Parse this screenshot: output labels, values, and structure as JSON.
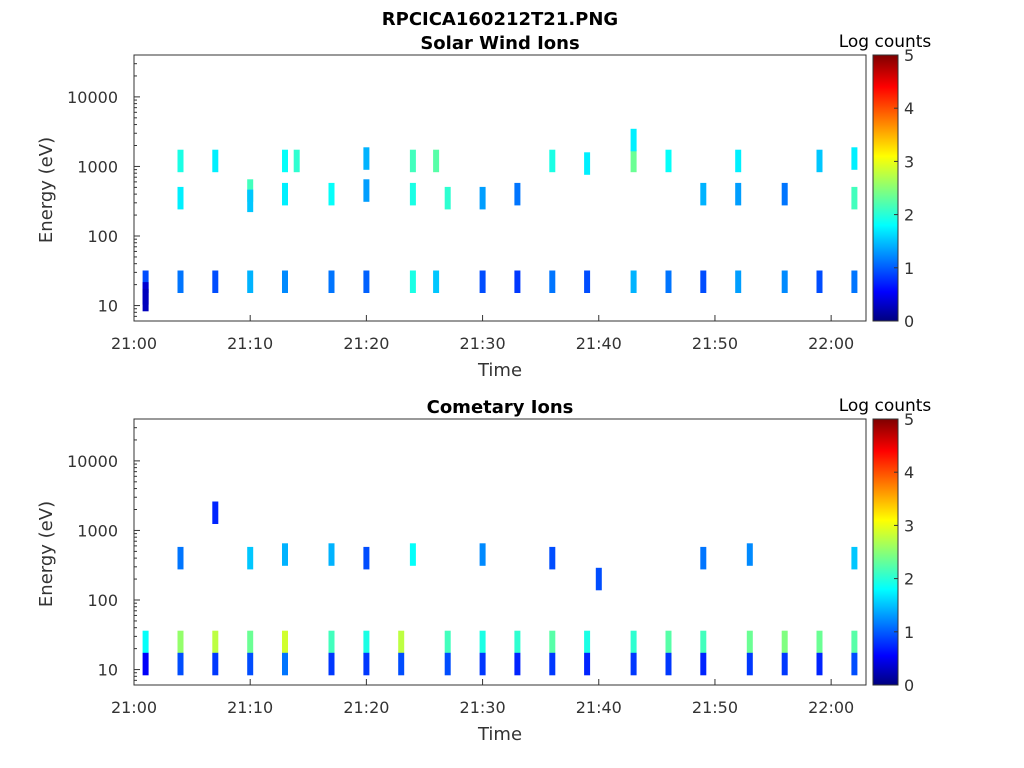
{
  "figure": {
    "title": "RPCICA160212T21.PNG"
  },
  "chart_data": [
    {
      "type": "heatmap",
      "title": "Solar Wind Ions",
      "xlabel": "Time",
      "ylabel": "Energy (eV)",
      "yscale": "log",
      "xlim": [
        "21:00",
        "22:03"
      ],
      "ylim": [
        6,
        40000
      ],
      "xticks": [
        "21:00",
        "21:10",
        "21:20",
        "21:30",
        "21:40",
        "21:50",
        "22:00"
      ],
      "yticks": [
        "10",
        "100",
        "1000",
        "10000"
      ],
      "colorbar": {
        "label": "Log counts",
        "range": [
          0,
          5
        ],
        "ticks": [
          "0",
          "1",
          "2",
          "3",
          "4",
          "5"
        ],
        "colormap": "jet"
      },
      "cells": [
        [
          "21:01",
          22,
          1.0
        ],
        [
          "21:01",
          15,
          0.4
        ],
        [
          "21:01",
          12,
          0.3
        ],
        [
          "21:04",
          22,
          1.2
        ],
        [
          "21:04",
          1200,
          2.0
        ],
        [
          "21:04",
          350,
          1.8
        ],
        [
          "21:07",
          22,
          1.0
        ],
        [
          "21:07",
          1200,
          1.8
        ],
        [
          "21:10",
          22,
          1.5
        ],
        [
          "21:10",
          450,
          2.2
        ],
        [
          "21:10",
          320,
          1.6
        ],
        [
          "21:13",
          22,
          1.3
        ],
        [
          "21:13",
          1200,
          1.9
        ],
        [
          "21:13",
          400,
          1.8
        ],
        [
          "21:14",
          1200,
          2.1
        ],
        [
          "21:17",
          22,
          1.2
        ],
        [
          "21:17",
          400,
          1.9
        ],
        [
          "21:20",
          22,
          1.1
        ],
        [
          "21:20",
          1300,
          1.5
        ],
        [
          "21:20",
          450,
          1.4
        ],
        [
          "21:24",
          22,
          2.0
        ],
        [
          "21:24",
          1200,
          2.2
        ],
        [
          "21:24",
          400,
          2.0
        ],
        [
          "21:26",
          22,
          1.6
        ],
        [
          "21:26",
          1200,
          2.3
        ],
        [
          "21:27",
          350,
          2.1
        ],
        [
          "21:30",
          22,
          1.0
        ],
        [
          "21:30",
          350,
          1.4
        ],
        [
          "21:33",
          22,
          0.9
        ],
        [
          "21:33",
          400,
          1.2
        ],
        [
          "21:36",
          22,
          1.2
        ],
        [
          "21:36",
          1200,
          2.0
        ],
        [
          "21:39",
          22,
          1.0
        ],
        [
          "21:39",
          1100,
          1.8
        ],
        [
          "21:43",
          22,
          1.5
        ],
        [
          "21:43",
          1200,
          2.4
        ],
        [
          "21:43",
          2400,
          1.8
        ],
        [
          "21:46",
          22,
          1.2
        ],
        [
          "21:46",
          1200,
          1.9
        ],
        [
          "21:49",
          22,
          1.0
        ],
        [
          "21:49",
          400,
          1.5
        ],
        [
          "21:52",
          22,
          1.4
        ],
        [
          "21:52",
          1200,
          1.8
        ],
        [
          "21:52",
          400,
          1.4
        ],
        [
          "21:56",
          22,
          1.3
        ],
        [
          "21:56",
          400,
          1.2
        ],
        [
          "21:59",
          22,
          1.0
        ],
        [
          "21:59",
          1200,
          1.6
        ],
        [
          "22:02",
          22,
          1.2
        ],
        [
          "22:02",
          350,
          2.2
        ],
        [
          "22:02",
          1300,
          1.8
        ]
      ]
    },
    {
      "type": "heatmap",
      "title": "Cometary Ions",
      "xlabel": "Time",
      "ylabel": "Energy (eV)",
      "yscale": "log",
      "xlim": [
        "21:00",
        "22:03"
      ],
      "ylim": [
        6,
        40000
      ],
      "xticks": [
        "21:00",
        "21:10",
        "21:20",
        "21:30",
        "21:40",
        "21:50",
        "22:00"
      ],
      "yticks": [
        "10",
        "100",
        "1000",
        "10000"
      ],
      "colorbar": {
        "label": "Log counts",
        "range": [
          0,
          5
        ],
        "ticks": [
          "0",
          "1",
          "2",
          "3",
          "4",
          "5"
        ],
        "colormap": "jet"
      },
      "cells": [
        [
          "21:01",
          25,
          1.9
        ],
        [
          "21:01",
          12,
          0.6
        ],
        [
          "21:04",
          25,
          2.6
        ],
        [
          "21:04",
          12,
          1.0
        ],
        [
          "21:04",
          400,
          1.2
        ],
        [
          "21:07",
          25,
          2.8
        ],
        [
          "21:07",
          12,
          0.9
        ],
        [
          "21:07",
          1800,
          0.8
        ],
        [
          "21:10",
          25,
          2.4
        ],
        [
          "21:10",
          12,
          1.0
        ],
        [
          "21:10",
          400,
          1.6
        ],
        [
          "21:13",
          25,
          2.9
        ],
        [
          "21:13",
          12,
          1.2
        ],
        [
          "21:13",
          450,
          1.5
        ],
        [
          "21:17",
          25,
          2.2
        ],
        [
          "21:17",
          12,
          0.9
        ],
        [
          "21:17",
          450,
          1.5
        ],
        [
          "21:20",
          25,
          2.0
        ],
        [
          "21:20",
          12,
          0.9
        ],
        [
          "21:20",
          400,
          1.0
        ],
        [
          "21:23",
          25,
          2.8
        ],
        [
          "21:23",
          12,
          1.0
        ],
        [
          "21:24",
          450,
          1.9
        ],
        [
          "21:27",
          25,
          2.2
        ],
        [
          "21:27",
          12,
          1.0
        ],
        [
          "21:30",
          25,
          2.0
        ],
        [
          "21:30",
          12,
          0.9
        ],
        [
          "21:30",
          450,
          1.3
        ],
        [
          "21:33",
          25,
          2.1
        ],
        [
          "21:33",
          12,
          0.8
        ],
        [
          "21:36",
          25,
          2.3
        ],
        [
          "21:36",
          12,
          0.9
        ],
        [
          "21:36",
          400,
          1.0
        ],
        [
          "21:39",
          25,
          2.0
        ],
        [
          "21:39",
          12,
          0.8
        ],
        [
          "21:40",
          200,
          1.0
        ],
        [
          "21:43",
          25,
          2.1
        ],
        [
          "21:43",
          12,
          0.9
        ],
        [
          "21:46",
          25,
          2.3
        ],
        [
          "21:46",
          12,
          0.9
        ],
        [
          "21:49",
          25,
          2.2
        ],
        [
          "21:49",
          12,
          0.8
        ],
        [
          "21:49",
          400,
          1.2
        ],
        [
          "21:53",
          25,
          2.4
        ],
        [
          "21:53",
          12,
          0.9
        ],
        [
          "21:53",
          450,
          1.3
        ],
        [
          "21:56",
          25,
          2.5
        ],
        [
          "21:56",
          12,
          0.9
        ],
        [
          "21:59",
          25,
          2.4
        ],
        [
          "21:59",
          12,
          0.8
        ],
        [
          "22:02",
          25,
          2.3
        ],
        [
          "22:02",
          12,
          1.0
        ],
        [
          "22:02",
          400,
          1.6
        ]
      ]
    }
  ]
}
